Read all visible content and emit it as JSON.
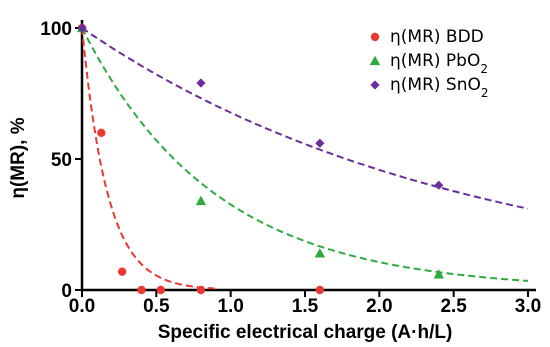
{
  "chart_data": {
    "type": "scatter",
    "xlabel": "Specific electrical charge (A·h/L)",
    "ylabel": "η(MR), %",
    "xlim": [
      0,
      3.0
    ],
    "ylim": [
      0,
      100
    ],
    "xticks": [
      "0.0",
      "0.5",
      "1.0",
      "1.5",
      "2.0",
      "2.5",
      "3.0"
    ],
    "yticks": [
      "0",
      "50",
      "100"
    ],
    "grid": false,
    "legend_position": "top-right",
    "series": [
      {
        "name_prefix": "η(MR) BDD",
        "name_sub": "",
        "marker": "circle",
        "color": "#e8382f",
        "x": [
          0.0,
          0.13,
          0.27,
          0.4,
          0.53,
          0.8,
          1.6
        ],
        "y": [
          100,
          60,
          7,
          0,
          0,
          0,
          0
        ],
        "fit_k": 5.8
      },
      {
        "name_prefix": "η(MR) PbO",
        "name_sub": "2",
        "marker": "triangle",
        "color": "#2eaa3f",
        "x": [
          0.0,
          0.8,
          1.6,
          2.4
        ],
        "y": [
          100,
          34,
          14,
          6
        ],
        "fit_k": 1.12
      },
      {
        "name_prefix": "η(MR) SnO",
        "name_sub": "2",
        "marker": "diamond",
        "color": "#6a2e9c",
        "x": [
          0.0,
          0.8,
          1.6,
          2.4
        ],
        "y": [
          100,
          79,
          56,
          40
        ],
        "fit_k": 0.39
      }
    ]
  }
}
